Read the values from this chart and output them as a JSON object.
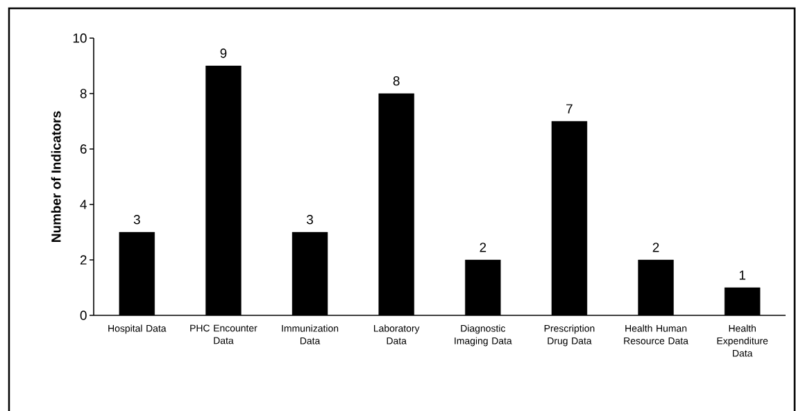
{
  "chart_data": {
    "type": "bar",
    "ylabel": "Number of Indicators",
    "categories": [
      "Hospital Data",
      "PHC Encounter Data",
      "Immunization Data",
      "Laboratory Data",
      "Diagnostic Imaging Data",
      "Prescription Drug Data",
      "Health Human Resource Data",
      "Health Expenditure Data"
    ],
    "values": [
      3,
      9,
      3,
      8,
      2,
      7,
      2,
      1
    ],
    "color": "#000000",
    "ylim": [
      0,
      10
    ],
    "yticks": [
      0,
      2,
      4,
      6,
      8,
      10
    ],
    "data_labels": true
  }
}
